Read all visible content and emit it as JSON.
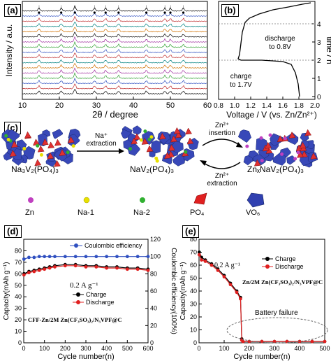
{
  "panel_a": {
    "label": "(a)",
    "xlabel": "2θ / degree",
    "ylabel": "Intensity / a.u.",
    "xticks": [
      "10",
      "20",
      "30",
      "40",
      "50",
      "60"
    ]
  },
  "panel_b": {
    "label": "(b)",
    "xlabel": "Voltage / V (vs. Zn/Zn²⁺)",
    "ylabel": "time / h",
    "xticks": [
      "0.8",
      "1.0",
      "1.2",
      "1.4",
      "1.6",
      "1.8",
      "2.0"
    ],
    "yticks": [
      "0",
      "1",
      "2",
      "3",
      "4"
    ],
    "annot_discharge": "discharge to 0.8V",
    "annot_charge": "charge to 1.7V"
  },
  "panel_c": {
    "label": "(c)",
    "arrow1": "Na⁺ extraction",
    "arrow2_top": "Zn²⁺ insertion",
    "arrow2_bottom": "Zn²⁺ extraction",
    "struct1": "Na₃V₂(PO₄)₃",
    "struct2": "NaV₂(PO₄)₃",
    "struct3": "ZnₓNaV₂(PO₄)₃",
    "legend": [
      {
        "label": "Zn",
        "color": "#c040c0"
      },
      {
        "label": "Na-1",
        "color": "#e8e000"
      },
      {
        "label": "Na-2",
        "color": "#30b030"
      },
      {
        "label": "PO₄",
        "color": "#e02020"
      },
      {
        "label": "VO₆",
        "color": "#3040b0"
      }
    ]
  },
  "chart_data": [
    {
      "type": "line",
      "panel": "d",
      "label": "(d)",
      "xlabel": "Cycle number(n)",
      "ylabel": "Capacity(mAh g⁻¹)",
      "y2label": "Coulombic efficiency(100%)",
      "xlim": [
        0,
        600
      ],
      "ylim": [
        0,
        90
      ],
      "y2lim": [
        0,
        120
      ],
      "xticks": [
        "0",
        "100",
        "200",
        "300",
        "400",
        "500",
        "600"
      ],
      "yticks": [
        "0",
        "10",
        "20",
        "30",
        "40",
        "50",
        "60",
        "70",
        "80"
      ],
      "y2ticks": [
        "0",
        "20",
        "40",
        "60",
        "80",
        "100",
        "120"
      ],
      "rate": "0.2 A g⁻¹",
      "system": "CFF-Zn/2M Zn(CF₃SO₃)₂/N₃VPF@C",
      "series": [
        {
          "name": "Charge",
          "color": "#000000",
          "x": [
            1,
            25,
            50,
            75,
            100,
            125,
            150,
            200,
            250,
            300,
            350,
            400,
            450,
            500,
            550,
            600
          ],
          "y": [
            60,
            62,
            63,
            64,
            65,
            66,
            67,
            68,
            68,
            67,
            67,
            66,
            66,
            65,
            65,
            64
          ]
        },
        {
          "name": "Discharge",
          "color": "#e02020",
          "x": [
            1,
            25,
            50,
            75,
            100,
            125,
            150,
            200,
            250,
            300,
            350,
            400,
            450,
            500,
            550,
            600
          ],
          "y": [
            59,
            61,
            62,
            63,
            64,
            65,
            66,
            67,
            67,
            66,
            66,
            65,
            65,
            64,
            64,
            63
          ]
        },
        {
          "name": "Coulombic efficiency",
          "color": "#3050c0",
          "axis": "y2",
          "x": [
            1,
            25,
            50,
            75,
            100,
            125,
            150,
            200,
            250,
            300,
            350,
            400,
            450,
            500,
            550,
            600
          ],
          "y": [
            97,
            99,
            99,
            100,
            100,
            100,
            100,
            100,
            100,
            100,
            100,
            100,
            100,
            100,
            100,
            100
          ]
        }
      ]
    },
    {
      "type": "line",
      "panel": "e",
      "label": "(e)",
      "xlabel": "Cycle number(n)",
      "ylabel": "Capacity(mAh g⁻¹)",
      "xlim": [
        0,
        500
      ],
      "ylim": [
        0,
        80
      ],
      "xticks": [
        "0",
        "100",
        "200",
        "300",
        "400",
        "500"
      ],
      "yticks": [
        "0",
        "10",
        "20",
        "30",
        "40",
        "50",
        "60",
        "70",
        "80"
      ],
      "rate": "0.2 A g⁻¹",
      "system": "Zn/2M Zn(CF₃SO₃)₂/N₃VPF@C",
      "annotation": "Battery failure",
      "series": [
        {
          "name": "Charge",
          "color": "#000000",
          "x": [
            1,
            10,
            25,
            50,
            75,
            100,
            125,
            150,
            165,
            170,
            175,
            200,
            250,
            300,
            350,
            400,
            450,
            500
          ],
          "y": [
            70,
            66,
            64,
            61,
            57,
            52,
            46,
            40,
            35,
            3,
            1,
            1,
            1,
            1,
            1,
            1,
            1,
            1
          ]
        },
        {
          "name": "Discharge",
          "color": "#e02020",
          "x": [
            1,
            10,
            25,
            50,
            75,
            100,
            125,
            150,
            165,
            170,
            175,
            200,
            250,
            300,
            350,
            400,
            450,
            500
          ],
          "y": [
            68,
            64,
            63,
            60,
            56,
            51,
            45,
            39,
            34,
            2,
            1,
            1,
            1,
            1,
            1,
            1,
            1,
            1
          ]
        }
      ]
    }
  ]
}
